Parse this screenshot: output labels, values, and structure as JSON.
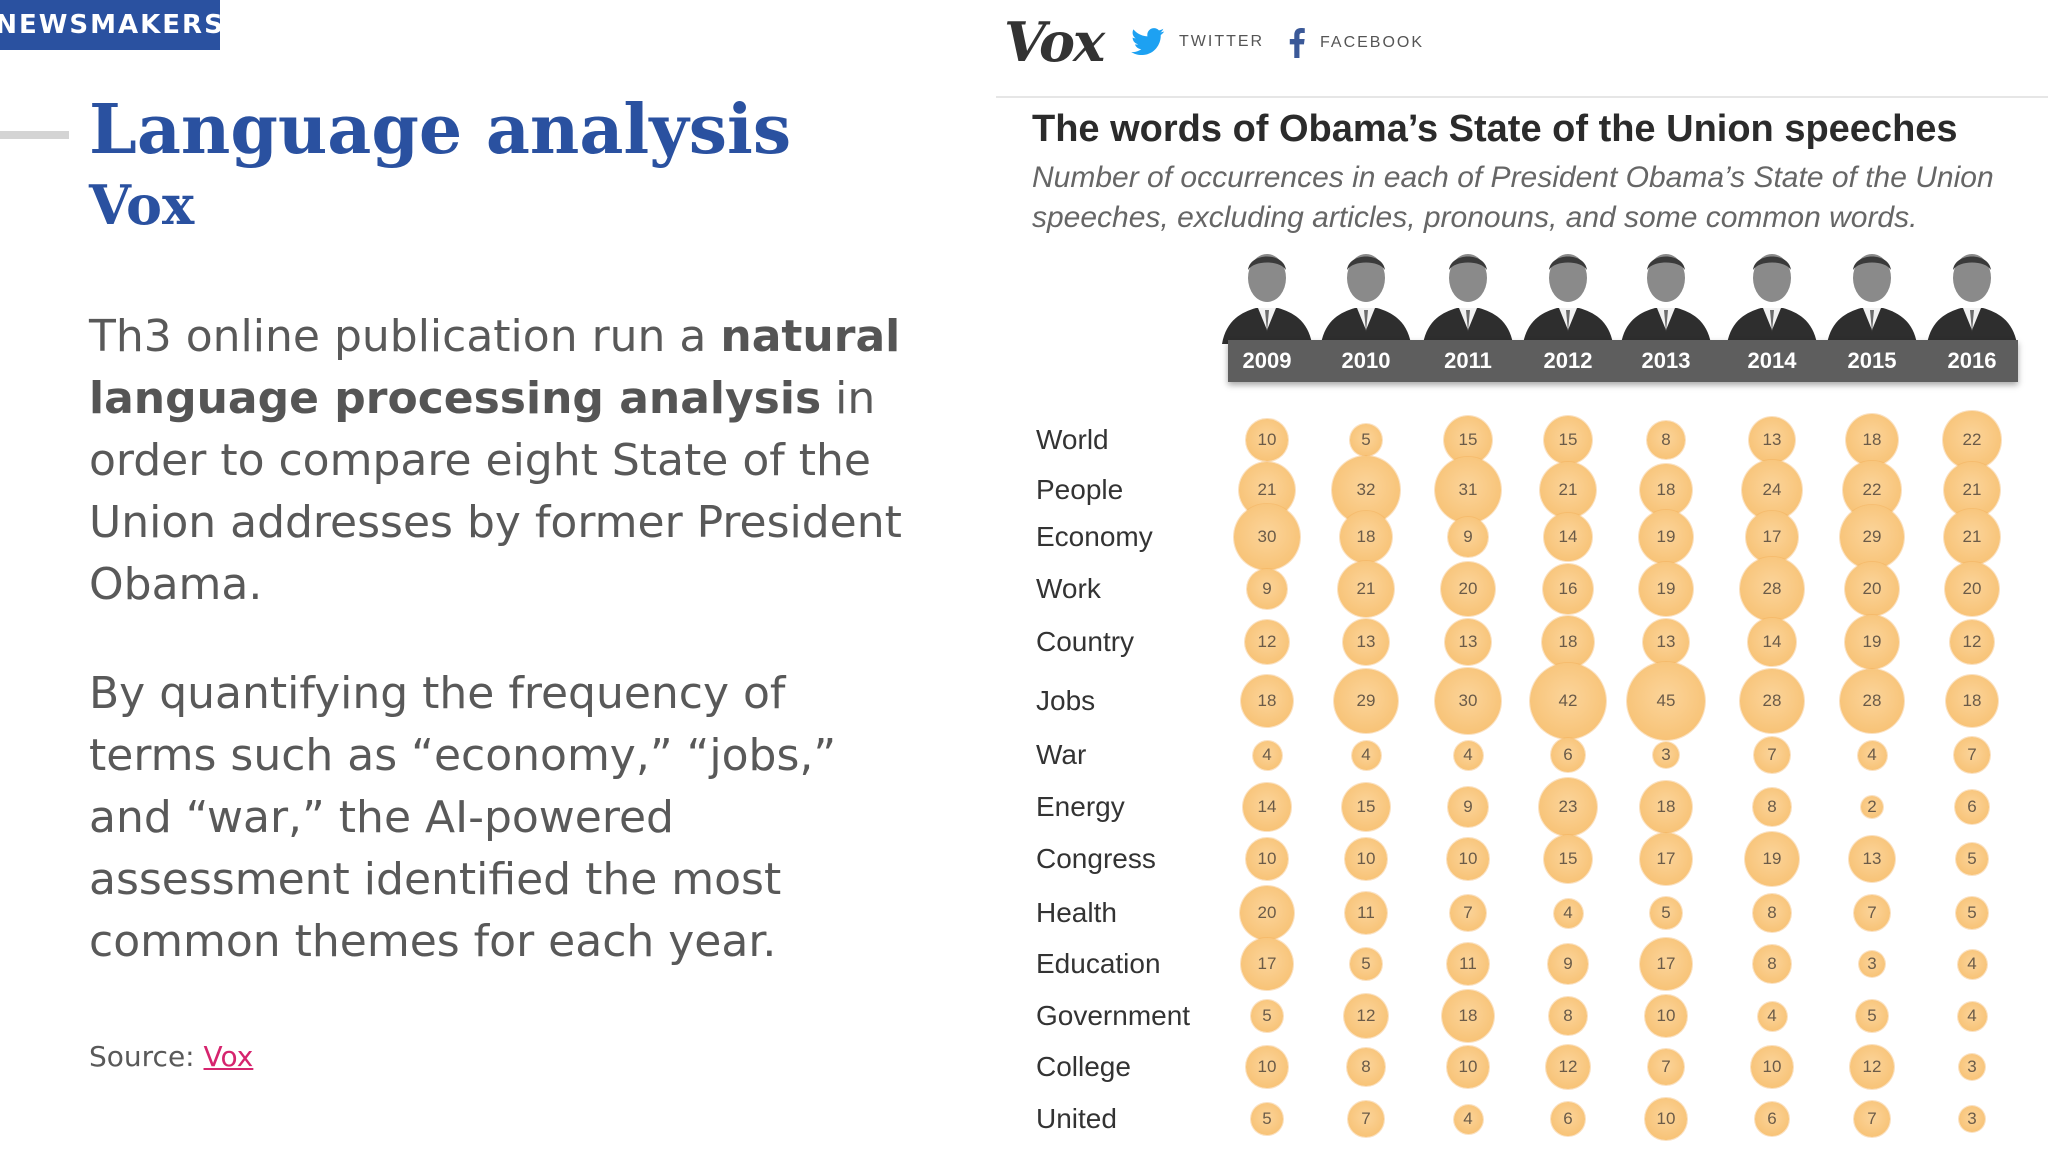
{
  "brand": {
    "badge": "NEWSMAKERS"
  },
  "slide": {
    "title": "Language analysis",
    "subtitle": "Vox",
    "para1": {
      "pre": "Th3 online publication run a ",
      "bold": "natural language processing analysis",
      "post": " in order to compare eight State of the Union addresses by former President Obama."
    },
    "para2": "By quantifying the frequency of terms such as “economy,” “jobs,” and “war,” the AI-powered assessment identified the most common themes for each year.",
    "source_label": "Source: ",
    "source_link": "Vox"
  },
  "vox": {
    "logo": "Vox",
    "twitter_label": "TWITTER",
    "facebook_label": "FACEBOOK",
    "icons": {
      "twitter": "twitter-bird-icon",
      "facebook": "facebook-f-icon"
    },
    "colors": {
      "bubble": "#f8c479",
      "year_bar": "#5e5e5e",
      "twitter": "#1da1f2",
      "brand": "#2a51a0",
      "link": "#d6246e"
    }
  },
  "chart_data": {
    "type": "bubble-table",
    "title": "The words of Obama’s State of the Union speeches",
    "subtitle": "Number of occurrences in each of President Obama’s State of the Union speeches, excluding articles, pronouns, and some common words.",
    "years": [
      "2009",
      "2010",
      "2011",
      "2012",
      "2013",
      "2014",
      "2015",
      "2016"
    ],
    "rows": [
      {
        "word": "World",
        "values": [
          10,
          5,
          15,
          15,
          8,
          13,
          18,
          22
        ]
      },
      {
        "word": "People",
        "values": [
          21,
          32,
          31,
          21,
          18,
          24,
          22,
          21
        ]
      },
      {
        "word": "Economy",
        "values": [
          30,
          18,
          9,
          14,
          19,
          17,
          29,
          21
        ]
      },
      {
        "word": "Work",
        "values": [
          9,
          21,
          20,
          16,
          19,
          28,
          20,
          20
        ]
      },
      {
        "word": "Country",
        "values": [
          12,
          13,
          13,
          18,
          13,
          14,
          19,
          12
        ]
      },
      {
        "word": "Jobs",
        "values": [
          18,
          29,
          30,
          42,
          45,
          28,
          28,
          18
        ]
      },
      {
        "word": "War",
        "values": [
          4,
          4,
          4,
          6,
          3,
          7,
          4,
          7
        ]
      },
      {
        "word": "Energy",
        "values": [
          14,
          15,
          9,
          23,
          18,
          8,
          2,
          6
        ]
      },
      {
        "word": "Congress",
        "values": [
          10,
          10,
          10,
          15,
          17,
          19,
          13,
          5
        ]
      },
      {
        "word": "Health",
        "values": [
          20,
          11,
          7,
          4,
          5,
          8,
          7,
          5
        ]
      },
      {
        "word": "Education",
        "values": [
          17,
          5,
          11,
          9,
          17,
          8,
          3,
          4
        ]
      },
      {
        "word": "Government",
        "values": [
          5,
          12,
          18,
          8,
          10,
          4,
          5,
          4
        ]
      },
      {
        "word": "College",
        "values": [
          10,
          8,
          10,
          12,
          7,
          10,
          12,
          3
        ]
      },
      {
        "word": "United",
        "values": [
          5,
          7,
          4,
          6,
          10,
          6,
          7,
          3
        ]
      }
    ]
  }
}
